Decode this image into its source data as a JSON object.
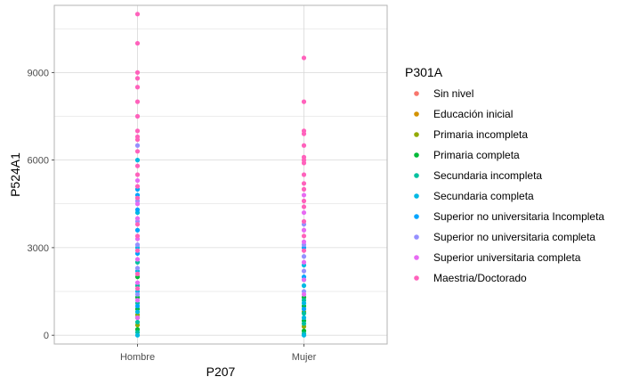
{
  "chart_data": {
    "type": "scatter",
    "x_categories": [
      "Hombre",
      "Mujer"
    ],
    "xlabel": "P207",
    "ylabel": "P524A1",
    "ylim": [
      -300,
      11300
    ],
    "y_ticks": [
      0,
      3000,
      6000,
      9000
    ],
    "y_tick_labels": [
      "0",
      "3000",
      "6000",
      "9000"
    ],
    "grid": true,
    "legend_title": "P301A",
    "legend_position": "right",
    "series": [
      {
        "name": "Sin nivel",
        "color": "#F8766D",
        "points": []
      },
      {
        "name": "Educación inicial",
        "color": "#D39200",
        "points": []
      },
      {
        "name": "Primaria incompleta",
        "color": "#93AA00",
        "points": [
          {
            "x": "Hombre",
            "y": 350
          },
          {
            "x": "Hombre",
            "y": 700
          },
          {
            "x": "Mujer",
            "y": 300
          },
          {
            "x": "Mujer",
            "y": 800
          }
        ]
      },
      {
        "name": "Primaria completa",
        "color": "#00BA38",
        "points": [
          {
            "x": "Hombre",
            "y": 200
          },
          {
            "x": "Hombre",
            "y": 600
          },
          {
            "x": "Hombre",
            "y": 900
          },
          {
            "x": "Hombre",
            "y": 1300
          },
          {
            "x": "Hombre",
            "y": 2000
          },
          {
            "x": "Mujer",
            "y": 150
          },
          {
            "x": "Mujer",
            "y": 500
          },
          {
            "x": "Mujer",
            "y": 1000
          },
          {
            "x": "Mujer",
            "y": 1300
          }
        ]
      },
      {
        "name": "Secundaria incompleta",
        "color": "#00C19F",
        "points": [
          {
            "x": "Hombre",
            "y": 100
          },
          {
            "x": "Hombre",
            "y": 450
          },
          {
            "x": "Hombre",
            "y": 1100
          },
          {
            "x": "Hombre",
            "y": 1700
          },
          {
            "x": "Hombre",
            "y": 2500
          },
          {
            "x": "Mujer",
            "y": 50
          },
          {
            "x": "Mujer",
            "y": 400
          },
          {
            "x": "Mujer",
            "y": 750
          },
          {
            "x": "Mujer",
            "y": 1200
          },
          {
            "x": "Mujer",
            "y": 1900
          }
        ]
      },
      {
        "name": "Secundaria completa",
        "color": "#00B9E3",
        "points": [
          {
            "x": "Hombre",
            "y": 0
          },
          {
            "x": "Hombre",
            "y": 800
          },
          {
            "x": "Hombre",
            "y": 1500
          },
          {
            "x": "Hombre",
            "y": 2200
          },
          {
            "x": "Hombre",
            "y": 3000
          },
          {
            "x": "Hombre",
            "y": 4200
          },
          {
            "x": "Hombre",
            "y": 6000
          },
          {
            "x": "Mujer",
            "y": 0
          },
          {
            "x": "Mujer",
            "y": 600
          },
          {
            "x": "Mujer",
            "y": 1100
          },
          {
            "x": "Mujer",
            "y": 1700
          },
          {
            "x": "Mujer",
            "y": 2400
          }
        ]
      },
      {
        "name": "Superior no universitaria Incompleta",
        "color": "#00A5FF",
        "points": [
          {
            "x": "Hombre",
            "y": 1000
          },
          {
            "x": "Hombre",
            "y": 2800
          },
          {
            "x": "Hombre",
            "y": 3600
          },
          {
            "x": "Hombre",
            "y": 4300
          },
          {
            "x": "Hombre",
            "y": 4800
          },
          {
            "x": "Hombre",
            "y": 5000
          },
          {
            "x": "Mujer",
            "y": 900
          },
          {
            "x": "Mujer",
            "y": 2000
          },
          {
            "x": "Mujer",
            "y": 3000
          }
        ]
      },
      {
        "name": "Superior no universitaria completa",
        "color": "#9590FF",
        "points": [
          {
            "x": "Hombre",
            "y": 1400
          },
          {
            "x": "Hombre",
            "y": 2300
          },
          {
            "x": "Hombre",
            "y": 3100
          },
          {
            "x": "Hombre",
            "y": 3900
          },
          {
            "x": "Hombre",
            "y": 4600
          },
          {
            "x": "Hombre",
            "y": 6500
          },
          {
            "x": "Mujer",
            "y": 1500
          },
          {
            "x": "Mujer",
            "y": 2200
          },
          {
            "x": "Mujer",
            "y": 2700
          },
          {
            "x": "Mujer",
            "y": 3100
          },
          {
            "x": "Mujer",
            "y": 3800
          }
        ]
      },
      {
        "name": "Superior universitaria completa",
        "color": "#E76BF3",
        "points": [
          {
            "x": "Hombre",
            "y": 600
          },
          {
            "x": "Hombre",
            "y": 1200
          },
          {
            "x": "Hombre",
            "y": 1800
          },
          {
            "x": "Hombre",
            "y": 2600
          },
          {
            "x": "Hombre",
            "y": 3300
          },
          {
            "x": "Hombre",
            "y": 4000
          },
          {
            "x": "Hombre",
            "y": 4500
          },
          {
            "x": "Hombre",
            "y": 5300
          },
          {
            "x": "Mujer",
            "y": 1400
          },
          {
            "x": "Mujer",
            "y": 1900
          },
          {
            "x": "Mujer",
            "y": 2500
          },
          {
            "x": "Mujer",
            "y": 3200
          },
          {
            "x": "Mujer",
            "y": 3600
          },
          {
            "x": "Mujer",
            "y": 4200
          },
          {
            "x": "Mujer",
            "y": 4800
          }
        ]
      },
      {
        "name": "Maestria/Doctorado",
        "color": "#FF62BC",
        "points": [
          {
            "x": "Hombre",
            "y": 1600
          },
          {
            "x": "Hombre",
            "y": 2100
          },
          {
            "x": "Hombre",
            "y": 2900
          },
          {
            "x": "Hombre",
            "y": 3400
          },
          {
            "x": "Hombre",
            "y": 3800
          },
          {
            "x": "Hombre",
            "y": 4700
          },
          {
            "x": "Hombre",
            "y": 5100
          },
          {
            "x": "Hombre",
            "y": 5500
          },
          {
            "x": "Hombre",
            "y": 5800
          },
          {
            "x": "Hombre",
            "y": 6300
          },
          {
            "x": "Hombre",
            "y": 6700
          },
          {
            "x": "Hombre",
            "y": 6800
          },
          {
            "x": "Hombre",
            "y": 7000
          },
          {
            "x": "Hombre",
            "y": 7500
          },
          {
            "x": "Hombre",
            "y": 8000
          },
          {
            "x": "Hombre",
            "y": 8500
          },
          {
            "x": "Hombre",
            "y": 8800
          },
          {
            "x": "Hombre",
            "y": 9000
          },
          {
            "x": "Hombre",
            "y": 10000
          },
          {
            "x": "Hombre",
            "y": 11000
          },
          {
            "x": "Mujer",
            "y": 2900
          },
          {
            "x": "Mujer",
            "y": 3400
          },
          {
            "x": "Mujer",
            "y": 3900
          },
          {
            "x": "Mujer",
            "y": 4400
          },
          {
            "x": "Mujer",
            "y": 4600
          },
          {
            "x": "Mujer",
            "y": 5000
          },
          {
            "x": "Mujer",
            "y": 5200
          },
          {
            "x": "Mujer",
            "y": 5500
          },
          {
            "x": "Mujer",
            "y": 5900
          },
          {
            "x": "Mujer",
            "y": 6000
          },
          {
            "x": "Mujer",
            "y": 6100
          },
          {
            "x": "Mujer",
            "y": 6500
          },
          {
            "x": "Mujer",
            "y": 6900
          },
          {
            "x": "Mujer",
            "y": 7000
          },
          {
            "x": "Mujer",
            "y": 8000
          },
          {
            "x": "Mujer",
            "y": 9500
          }
        ]
      }
    ]
  }
}
